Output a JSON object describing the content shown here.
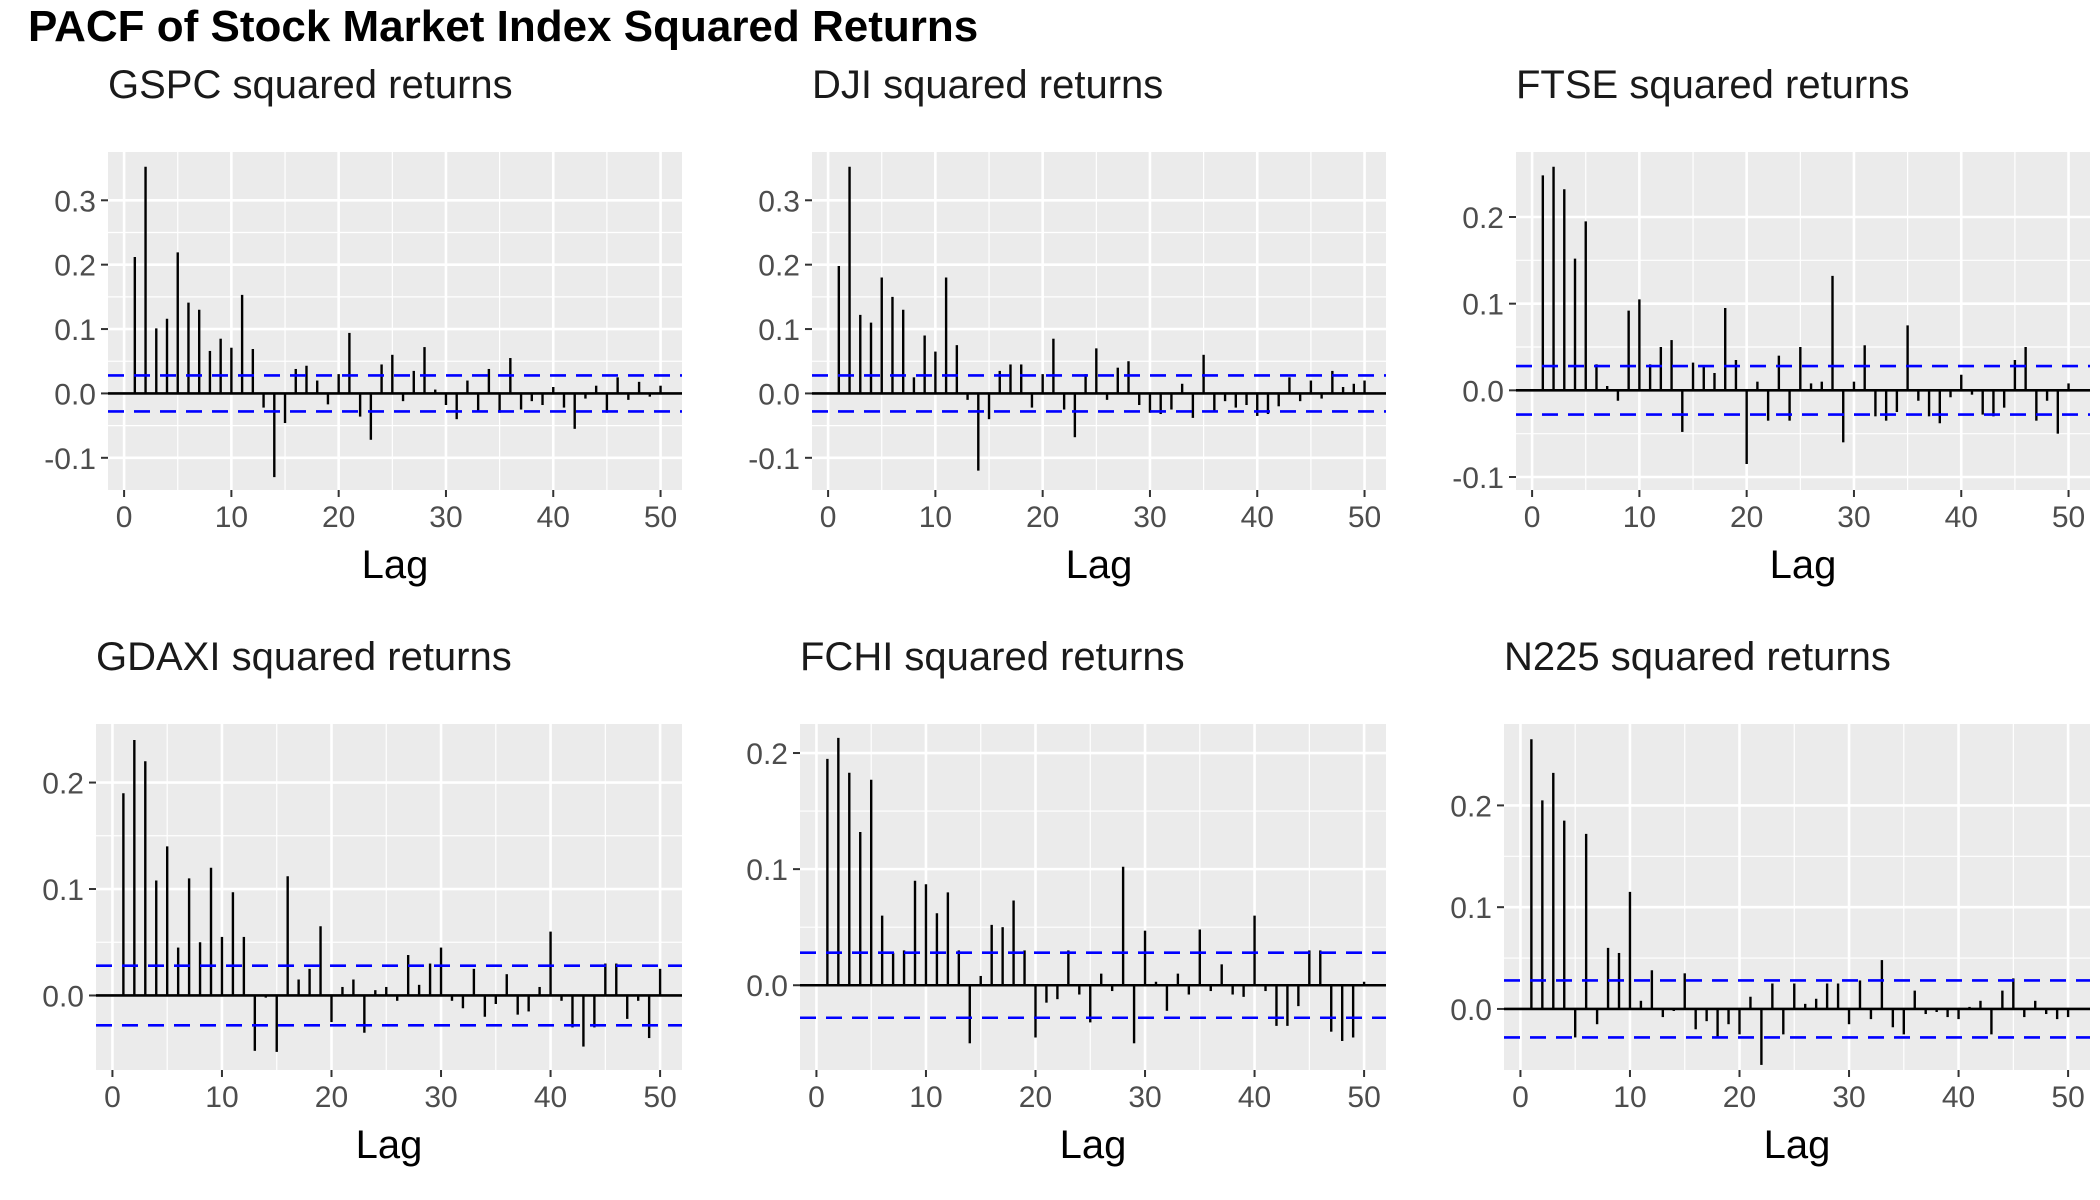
{
  "title": "PACF of Stock Market Index Squared Returns",
  "chart_data": [
    {
      "type": "bar",
      "title": "GSPC squared returns",
      "xlabel": "Lag",
      "ylabel": "",
      "xlim": [
        -1.5,
        52
      ],
      "ylim": [
        -0.15,
        0.375
      ],
      "xticks": [
        0,
        10,
        20,
        30,
        40,
        50
      ],
      "yticks": [
        -0.1,
        0.0,
        0.1,
        0.2,
        0.3
      ],
      "ytick_labels": [
        "-0.1",
        "0.0",
        "0.1",
        "0.2",
        "0.3"
      ],
      "conf_limit": 0.028,
      "x": [
        1,
        2,
        3,
        4,
        5,
        6,
        7,
        8,
        9,
        10,
        11,
        12,
        13,
        14,
        15,
        16,
        17,
        18,
        19,
        20,
        21,
        22,
        23,
        24,
        25,
        26,
        27,
        28,
        29,
        30,
        31,
        32,
        33,
        34,
        35,
        36,
        37,
        38,
        39,
        40,
        41,
        42,
        43,
        44,
        45,
        46,
        47,
        48,
        49,
        50
      ],
      "values": [
        0.212,
        0.352,
        0.101,
        0.116,
        0.219,
        0.141,
        0.13,
        0.066,
        0.085,
        0.071,
        0.153,
        0.069,
        -0.022,
        -0.13,
        -0.046,
        0.038,
        0.043,
        0.02,
        -0.017,
        0.03,
        0.094,
        -0.036,
        -0.072,
        0.045,
        0.06,
        -0.012,
        0.035,
        0.072,
        0.006,
        -0.018,
        -0.04,
        0.02,
        -0.028,
        0.038,
        -0.03,
        0.055,
        -0.025,
        -0.012,
        -0.018,
        0.01,
        -0.022,
        -0.055,
        -0.008,
        0.012,
        -0.03,
        0.025,
        -0.01,
        0.018,
        -0.005,
        0.012
      ]
    },
    {
      "type": "bar",
      "title": "DJI squared returns",
      "xlabel": "Lag",
      "ylabel": "",
      "xlim": [
        -1.5,
        52
      ],
      "ylim": [
        -0.15,
        0.375
      ],
      "xticks": [
        0,
        10,
        20,
        30,
        40,
        50
      ],
      "yticks": [
        -0.1,
        0.0,
        0.1,
        0.2,
        0.3
      ],
      "ytick_labels": [
        "-0.1",
        "0.0",
        "0.1",
        "0.2",
        "0.3"
      ],
      "conf_limit": 0.028,
      "x": [
        1,
        2,
        3,
        4,
        5,
        6,
        7,
        8,
        9,
        10,
        11,
        12,
        13,
        14,
        15,
        16,
        17,
        18,
        19,
        20,
        21,
        22,
        23,
        24,
        25,
        26,
        27,
        28,
        29,
        30,
        31,
        32,
        33,
        34,
        35,
        36,
        37,
        38,
        39,
        40,
        41,
        42,
        43,
        44,
        45,
        46,
        47,
        48,
        49,
        50
      ],
      "values": [
        0.198,
        0.352,
        0.122,
        0.11,
        0.18,
        0.15,
        0.13,
        0.025,
        0.09,
        0.065,
        0.18,
        0.075,
        -0.01,
        -0.12,
        -0.04,
        0.035,
        0.045,
        0.045,
        -0.022,
        0.03,
        0.085,
        -0.025,
        -0.068,
        0.03,
        0.07,
        -0.01,
        0.04,
        0.05,
        -0.018,
        -0.03,
        -0.032,
        -0.025,
        0.015,
        -0.038,
        0.06,
        -0.028,
        -0.012,
        -0.022,
        -0.018,
        -0.035,
        -0.032,
        -0.02,
        0.025,
        -0.012,
        0.02,
        -0.008,
        0.035,
        0.01,
        0.015,
        0.02
      ]
    },
    {
      "type": "bar",
      "title": "FTSE squared returns",
      "xlabel": "Lag",
      "ylabel": "",
      "xlim": [
        -1.5,
        52
      ],
      "ylim": [
        -0.115,
        0.275
      ],
      "xticks": [
        0,
        10,
        20,
        30,
        40,
        50
      ],
      "yticks": [
        -0.1,
        0.0,
        0.1,
        0.2
      ],
      "ytick_labels": [
        "-0.1",
        "0.0",
        "0.1",
        "0.2"
      ],
      "conf_limit": 0.028,
      "x": [
        1,
        2,
        3,
        4,
        5,
        6,
        7,
        8,
        9,
        10,
        11,
        12,
        13,
        14,
        15,
        16,
        17,
        18,
        19,
        20,
        21,
        22,
        23,
        24,
        25,
        26,
        27,
        28,
        29,
        30,
        31,
        32,
        33,
        34,
        35,
        36,
        37,
        38,
        39,
        40,
        41,
        42,
        43,
        44,
        45,
        46,
        47,
        48,
        49,
        50
      ],
      "values": [
        0.248,
        0.258,
        0.232,
        0.152,
        0.195,
        0.03,
        0.005,
        -0.012,
        0.092,
        0.105,
        0.03,
        0.05,
        0.058,
        -0.048,
        0.032,
        0.028,
        0.02,
        0.095,
        0.035,
        -0.085,
        0.01,
        -0.035,
        0.04,
        -0.035,
        0.05,
        0.008,
        0.01,
        0.132,
        -0.06,
        0.01,
        0.052,
        -0.03,
        -0.035,
        -0.025,
        0.075,
        -0.012,
        -0.03,
        -0.038,
        -0.008,
        0.018,
        -0.005,
        -0.028,
        -0.03,
        -0.02,
        0.035,
        0.05,
        -0.035,
        -0.012,
        -0.05,
        0.008
      ]
    },
    {
      "type": "bar",
      "title": "GDAXI squared returns",
      "xlabel": "Lag",
      "ylabel": "",
      "xlim": [
        -1.5,
        52
      ],
      "ylim": [
        -0.07,
        0.255
      ],
      "xticks": [
        0,
        10,
        20,
        30,
        40,
        50
      ],
      "yticks": [
        0.0,
        0.1,
        0.2
      ],
      "ytick_labels": [
        "0.0",
        "0.1",
        "0.2"
      ],
      "conf_limit": 0.028,
      "x": [
        1,
        2,
        3,
        4,
        5,
        6,
        7,
        8,
        9,
        10,
        11,
        12,
        13,
        14,
        15,
        16,
        17,
        18,
        19,
        20,
        21,
        22,
        23,
        24,
        25,
        26,
        27,
        28,
        29,
        30,
        31,
        32,
        33,
        34,
        35,
        36,
        37,
        38,
        39,
        40,
        41,
        42,
        43,
        44,
        45,
        46,
        47,
        48,
        49,
        50
      ],
      "values": [
        0.19,
        0.24,
        0.22,
        0.108,
        0.14,
        0.045,
        0.11,
        0.05,
        0.12,
        0.055,
        0.097,
        0.055,
        -0.052,
        -0.002,
        -0.053,
        0.112,
        0.015,
        0.025,
        0.065,
        -0.025,
        0.008,
        0.015,
        -0.035,
        0.005,
        0.008,
        -0.005,
        0.038,
        0.01,
        0.03,
        0.045,
        -0.005,
        -0.012,
        0.025,
        -0.02,
        -0.008,
        0.02,
        -0.018,
        -0.015,
        0.008,
        0.06,
        -0.005,
        -0.03,
        -0.048,
        -0.03,
        0.03,
        0.03,
        -0.022,
        -0.005,
        -0.04,
        0.025
      ]
    },
    {
      "type": "bar",
      "title": "FCHI squared returns",
      "xlabel": "Lag",
      "ylabel": "",
      "xlim": [
        -1.5,
        52
      ],
      "ylim": [
        -0.073,
        0.225
      ],
      "xticks": [
        0,
        10,
        20,
        30,
        40,
        50
      ],
      "yticks": [
        0.0,
        0.1,
        0.2
      ],
      "ytick_labels": [
        "0.0",
        "0.1",
        "0.2"
      ],
      "conf_limit": 0.028,
      "x": [
        1,
        2,
        3,
        4,
        5,
        6,
        7,
        8,
        9,
        10,
        11,
        12,
        13,
        14,
        15,
        16,
        17,
        18,
        19,
        20,
        21,
        22,
        23,
        24,
        25,
        26,
        27,
        28,
        29,
        30,
        31,
        32,
        33,
        34,
        35,
        36,
        37,
        38,
        39,
        40,
        41,
        42,
        43,
        44,
        45,
        46,
        47,
        48,
        49,
        50
      ],
      "values": [
        0.195,
        0.213,
        0.183,
        0.132,
        0.177,
        0.06,
        0.028,
        0.03,
        0.09,
        0.087,
        0.062,
        0.08,
        0.03,
        -0.05,
        0.008,
        0.052,
        0.05,
        0.073,
        0.03,
        -0.045,
        -0.015,
        -0.012,
        0.03,
        -0.008,
        -0.032,
        0.01,
        -0.005,
        0.102,
        -0.05,
        0.047,
        0.003,
        -0.022,
        0.01,
        -0.008,
        0.048,
        -0.005,
        0.018,
        -0.008,
        -0.01,
        0.06,
        -0.005,
        -0.035,
        -0.035,
        -0.018,
        0.03,
        0.03,
        -0.04,
        -0.048,
        -0.045,
        0.003
      ]
    },
    {
      "type": "bar",
      "title": "N225 squared returns",
      "xlabel": "Lag",
      "ylabel": "",
      "xlim": [
        -1.5,
        52
      ],
      "ylim": [
        -0.06,
        0.28
      ],
      "xticks": [
        0,
        10,
        20,
        30,
        40,
        50
      ],
      "yticks": [
        0.0,
        0.1,
        0.2
      ],
      "ytick_labels": [
        "0.0",
        "0.1",
        "0.2"
      ],
      "conf_limit": 0.028,
      "x": [
        1,
        2,
        3,
        4,
        5,
        6,
        7,
        8,
        9,
        10,
        11,
        12,
        13,
        14,
        15,
        16,
        17,
        18,
        19,
        20,
        21,
        22,
        23,
        24,
        25,
        26,
        27,
        28,
        29,
        30,
        31,
        32,
        33,
        34,
        35,
        36,
        37,
        38,
        39,
        40,
        41,
        42,
        43,
        44,
        45,
        46,
        47,
        48,
        49,
        50
      ],
      "values": [
        0.265,
        0.205,
        0.232,
        0.185,
        -0.028,
        0.172,
        -0.015,
        0.06,
        0.055,
        0.115,
        0.008,
        0.038,
        -0.008,
        -0.002,
        0.035,
        -0.02,
        -0.012,
        -0.028,
        -0.015,
        -0.025,
        0.012,
        -0.055,
        0.025,
        -0.025,
        0.025,
        0.005,
        0.01,
        0.025,
        0.025,
        -0.015,
        0.028,
        -0.01,
        0.048,
        -0.018,
        -0.025,
        0.018,
        -0.005,
        -0.003,
        -0.008,
        -0.01,
        0.002,
        0.008,
        -0.025,
        0.018,
        0.03,
        -0.008,
        0.008,
        -0.005,
        -0.01,
        -0.008
      ]
    }
  ]
}
